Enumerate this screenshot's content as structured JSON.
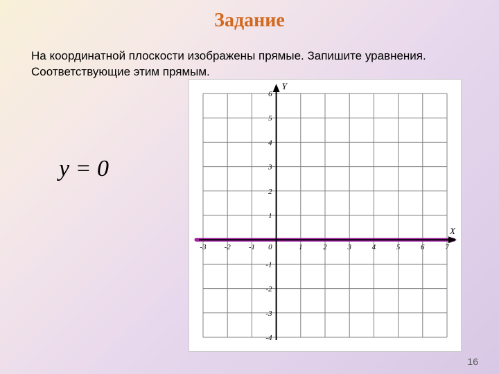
{
  "title": "Задание",
  "task_line1": "На координатной плоскости изображены прямые. Запишите уравнения.",
  "task_line2": "Соответствующие этим прямым.",
  "equation": "y = 0",
  "page_number": "16",
  "chart": {
    "type": "line",
    "x_axis_label": "X",
    "y_axis_label": "Y",
    "xlim": [
      -3,
      7
    ],
    "ylim": [
      -4,
      6
    ],
    "xtick_step": 1,
    "ytick_step": 1,
    "x_ticks": [
      -3,
      -2,
      -1,
      0,
      1,
      2,
      3,
      4,
      5,
      6,
      7
    ],
    "y_ticks": [
      -4,
      -3,
      -2,
      -1,
      0,
      1,
      2,
      3,
      4,
      5,
      6
    ],
    "origin_label": "0",
    "background_color": "#ffffff",
    "grid_color": "#808080",
    "grid_width": 1,
    "axis_color": "#000000",
    "axis_width": 2,
    "tick_label_color": "#000000",
    "tick_label_fontsize": 11,
    "axis_label_fontsize": 13,
    "axis_label_style": "italic",
    "series": [
      {
        "name": "y=0",
        "type": "hline",
        "y": 0,
        "color": "#a020a0",
        "width": 5
      }
    ]
  }
}
